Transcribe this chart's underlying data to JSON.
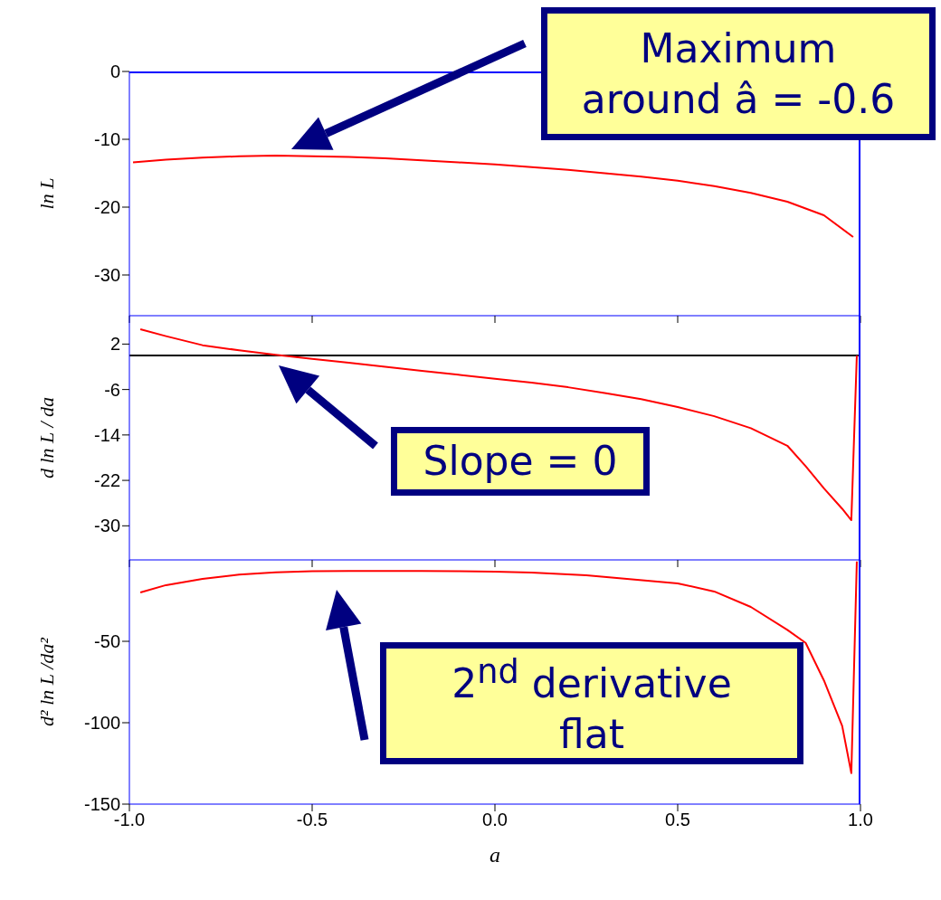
{
  "chart_data": [
    {
      "type": "line",
      "ylabel": "ln L",
      "color": "#ff0000",
      "tick_labels": "y",
      "x": [
        -0.99,
        -0.9,
        -0.8,
        -0.7,
        -0.6,
        -0.5,
        -0.4,
        -0.3,
        -0.2,
        -0.1,
        0,
        0.1,
        0.2,
        0.3,
        0.4,
        0.5,
        0.6,
        0.7,
        0.8,
        0.9,
        0.98
      ],
      "values": [
        -13.4,
        -13.0,
        -12.7,
        -12.5,
        -12.4,
        -12.5,
        -12.6,
        -12.8,
        -13.1,
        -13.4,
        -13.7,
        -14.1,
        -14.5,
        -15.0,
        -15.5,
        -16.1,
        -16.9,
        -17.9,
        -19.2,
        -21.2,
        -24.4
      ],
      "xlim": [
        -1,
        1
      ],
      "xticks": [
        -1,
        -0.5,
        0,
        0.5,
        1
      ],
      "ylim": [
        -36,
        0
      ],
      "yticks": [
        0,
        -10,
        -20,
        -30
      ],
      "annotations": [
        "Maximum around â = -0.6"
      ]
    },
    {
      "type": "line",
      "ylabel": "d ln L / da",
      "color": "#ff0000",
      "tick_labels": "y",
      "x": [
        -0.97,
        -0.9,
        -0.8,
        -0.7,
        -0.6,
        -0.5,
        -0.4,
        -0.3,
        -0.2,
        -0.1,
        0,
        0.1,
        0.2,
        0.3,
        0.4,
        0.5,
        0.6,
        0.7,
        0.8,
        0.85,
        0.9,
        0.95,
        0.975,
        0.99
      ],
      "values": [
        4.6,
        3.4,
        1.8,
        0.9,
        0.1,
        -0.6,
        -1.3,
        -2.0,
        -2.7,
        -3.4,
        -4.1,
        -4.8,
        -5.6,
        -6.6,
        -7.7,
        -9.1,
        -10.7,
        -12.8,
        -15.9,
        -19.5,
        -23.4,
        -27,
        -29,
        0
      ],
      "xlim": [
        -1,
        1
      ],
      "xticks": [
        -1,
        -0.5,
        0,
        0.5,
        1
      ],
      "ylim": [
        -36,
        7
      ],
      "yticks": [
        2,
        -6,
        -14,
        -22,
        -30
      ],
      "ref_lines": [
        {
          "axis": "y",
          "value": 0,
          "color": "#000000"
        }
      ],
      "annotations": [
        "Slope = 0"
      ]
    },
    {
      "type": "line",
      "ylabel": "d² ln L /da²",
      "xlabel": "a",
      "color": "#ff0000",
      "x": [
        -0.97,
        -0.9,
        -0.8,
        -0.7,
        -0.6,
        -0.5,
        -0.4,
        -0.3,
        -0.2,
        -0.1,
        0,
        0.1,
        0.25,
        0.5,
        0.6,
        0.7,
        0.8,
        0.85,
        0.9,
        0.95,
        0.975,
        0.99
      ],
      "values": [
        -20,
        -15.5,
        -11.7,
        -9,
        -7.6,
        -7,
        -6.8,
        -6.8,
        -6.8,
        -6.9,
        -7.2,
        -7.8,
        -9.4,
        -14.4,
        -19.4,
        -28.9,
        -43,
        -51,
        -74,
        -102,
        -131,
        -1
      ],
      "xlim": [
        -1,
        1
      ],
      "xticks": [
        {
          "value": -1,
          "label": "-1.0"
        },
        {
          "value": -0.5,
          "label": "-0.5"
        },
        {
          "value": 0,
          "label": "0.0"
        },
        {
          "value": 0.5,
          "label": "0.5"
        },
        {
          "value": 1,
          "label": "1.0"
        }
      ],
      "ylim": [
        -150,
        0
      ],
      "yticks": [
        -50,
        -100,
        -150
      ],
      "annotations": [
        "2$^{nd}$ derivative flat"
      ]
    }
  ]
}
